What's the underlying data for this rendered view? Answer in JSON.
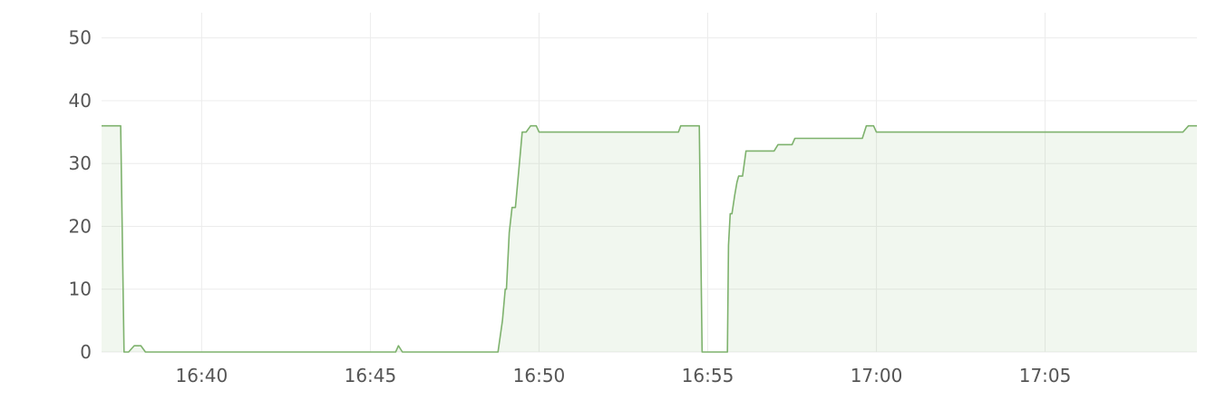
{
  "chart_data": {
    "type": "area",
    "title": "",
    "xlabel": "",
    "ylabel": "",
    "ylim": [
      0,
      54
    ],
    "xlim": [
      "16:37:02",
      "16:69:30"
    ],
    "x_ticks": [
      "16:40",
      "16:45",
      "16:50",
      "16:55",
      "17:00",
      "17:05"
    ],
    "y_ticks": [
      0,
      10,
      20,
      30,
      40,
      50
    ],
    "grid": true,
    "colors": {
      "series": "#7eb26d",
      "grid": "#ececec",
      "text": "#555555"
    },
    "series": [
      {
        "x": [
          "16:37:02",
          "16:37:36",
          "16:37:42",
          "16:37:50",
          "16:38:00",
          "16:38:12",
          "16:38:20",
          "16:38:30",
          "16:45:45",
          "16:45:50",
          "16:45:57",
          "16:48:47",
          "16:48:55",
          "16:49:00",
          "16:49:02",
          "16:49:07",
          "16:49:12",
          "16:49:18",
          "16:49:25",
          "16:49:30",
          "16:49:37",
          "16:49:45",
          "16:49:55",
          "16:50:00",
          "16:54:08",
          "16:54:12",
          "16:54:45",
          "16:54:50",
          "16:55:35",
          "16:55:37",
          "16:55:40",
          "16:55:43",
          "16:55:48",
          "16:55:52",
          "16:55:55",
          "16:56:02",
          "16:56:08",
          "16:56:10",
          "16:56:18",
          "16:56:25",
          "16:56:58",
          "16:57:05",
          "16:57:30",
          "16:57:35",
          "16:59:35",
          "16:59:42",
          "16:59:55",
          "16:60:00",
          "16:69:05",
          "16:69:15",
          "16:69:30"
        ],
        "y": [
          36,
          36,
          0,
          0,
          1,
          1,
          0,
          0,
          0,
          1,
          0,
          0,
          5,
          10,
          10,
          19,
          23,
          23,
          30,
          35,
          35,
          36,
          36,
          35,
          35,
          36,
          36,
          0,
          0,
          17,
          22,
          22,
          25,
          27,
          28,
          28,
          32,
          32,
          32,
          32,
          32,
          33,
          33,
          34,
          34,
          36,
          36,
          35,
          35,
          36,
          36
        ]
      }
    ]
  }
}
